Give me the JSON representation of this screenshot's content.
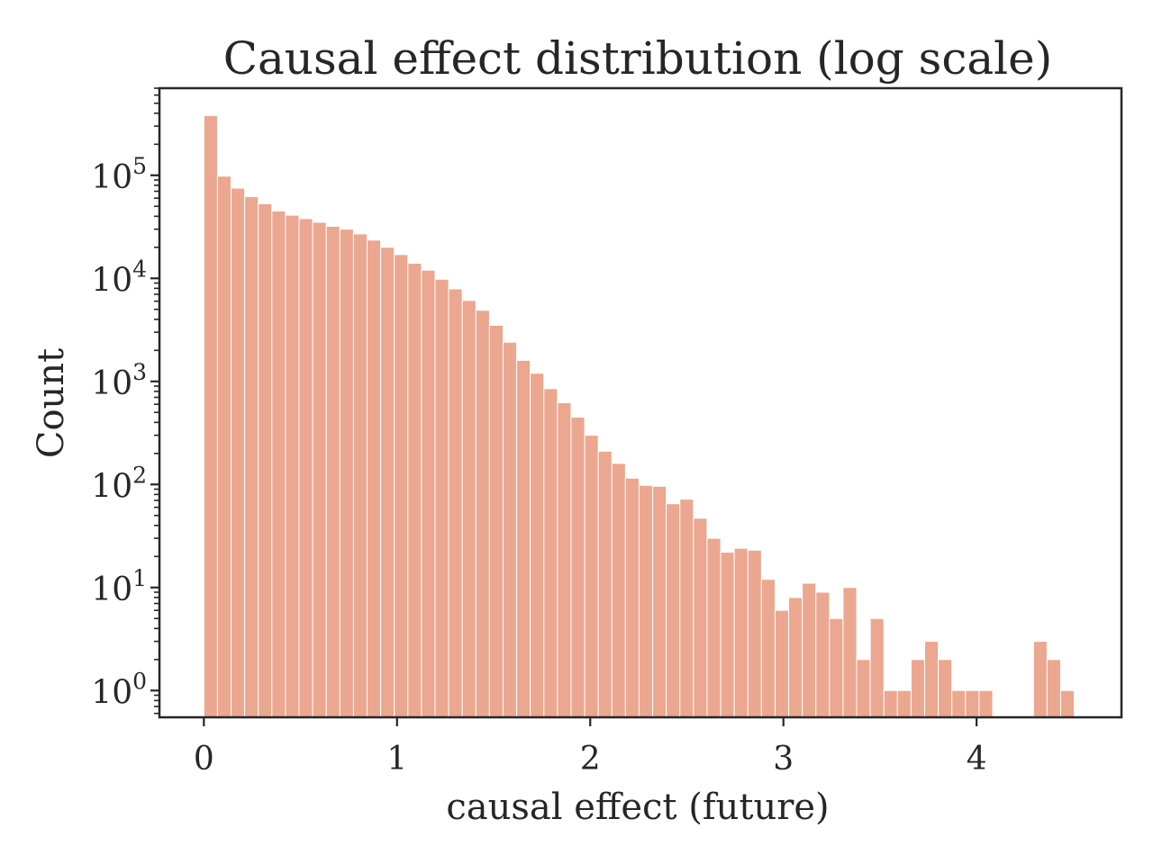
{
  "chart_data": {
    "type": "bar",
    "title": "Causal effect distribution (log scale)",
    "xlabel": "causal effect (future)",
    "ylabel": "Count",
    "y_scale": "log",
    "grid": false,
    "bar_color": "#eba78f",
    "bar_edge_color": "#ffffff",
    "axis_color": "#262626",
    "xlim": [
      -0.23,
      4.75
    ],
    "ylim": [
      0.55,
      700000
    ],
    "bin_start": 0,
    "bin_width": 0.0704,
    "x_ticks": [
      0,
      1,
      2,
      3,
      4
    ],
    "x_tick_labels": [
      "0",
      "1",
      "2",
      "3",
      "4"
    ],
    "y_ticks": [
      1,
      10,
      100,
      1000,
      10000,
      100000
    ],
    "y_tick_labels": [
      {
        "base": "10",
        "exp": "0"
      },
      {
        "base": "10",
        "exp": "1"
      },
      {
        "base": "10",
        "exp": "2"
      },
      {
        "base": "10",
        "exp": "3"
      },
      {
        "base": "10",
        "exp": "4"
      },
      {
        "base": "10",
        "exp": "5"
      }
    ],
    "values": [
      380000,
      98000,
      75000,
      62000,
      53000,
      45000,
      41000,
      38000,
      35000,
      32000,
      30000,
      27000,
      23500,
      20000,
      17000,
      14000,
      12000,
      9800,
      7900,
      6100,
      4900,
      3500,
      2400,
      1600,
      1200,
      850,
      620,
      450,
      300,
      210,
      160,
      115,
      98,
      96,
      65,
      72,
      47,
      30,
      22,
      24,
      23,
      12,
      6,
      8,
      11,
      9,
      5,
      10,
      2,
      5,
      1,
      1,
      2,
      3,
      2,
      1,
      1,
      1,
      0,
      0,
      0,
      3,
      2,
      1
    ]
  }
}
